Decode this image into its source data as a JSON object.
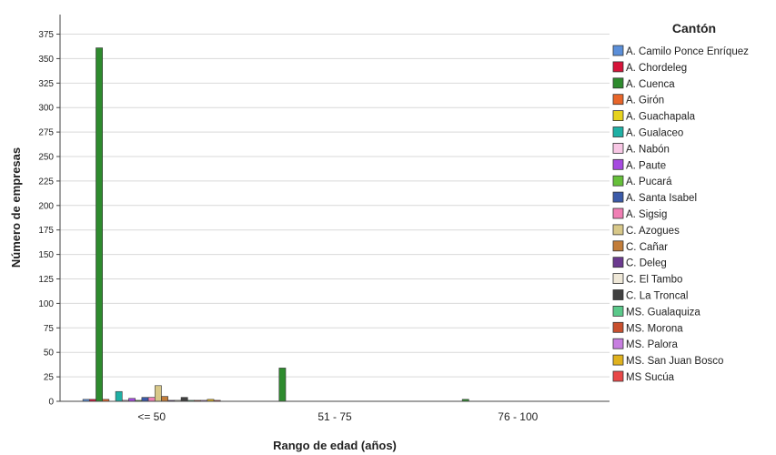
{
  "chart_data": {
    "type": "bar",
    "xlabel": "Rango de edad (años)",
    "ylabel": "Número de empresas",
    "ylim": [
      0,
      375
    ],
    "yticks": [
      0,
      25,
      50,
      75,
      100,
      125,
      150,
      175,
      200,
      225,
      250,
      275,
      300,
      325,
      350,
      375
    ],
    "grid": true,
    "legend_title": "Cantón",
    "legend_position": "right",
    "categories": [
      "<= 50",
      "51 - 75",
      "76 - 100"
    ],
    "series": [
      {
        "name": "A. Camilo Ponce Enríquez",
        "color": "#5B8FD9",
        "values": [
          2,
          0,
          0
        ]
      },
      {
        "name": "A. Chordeleg",
        "color": "#D6143A",
        "values": [
          2,
          0,
          0
        ]
      },
      {
        "name": "A. Cuenca",
        "color": "#2E8B2E",
        "values": [
          361,
          34,
          2
        ]
      },
      {
        "name": "A. Girón",
        "color": "#E8662A",
        "values": [
          2,
          0,
          0
        ]
      },
      {
        "name": "A. Guachapala",
        "color": "#E6D21E",
        "values": [
          0,
          0,
          0
        ]
      },
      {
        "name": "A. Gualaceo",
        "color": "#1FB0A5",
        "values": [
          10,
          0,
          0
        ]
      },
      {
        "name": "A. Nabón",
        "color": "#F8C7E5",
        "values": [
          1,
          0,
          0
        ]
      },
      {
        "name": "A. Paute",
        "color": "#A64BE0",
        "values": [
          3,
          0,
          0
        ]
      },
      {
        "name": "A. Pucará",
        "color": "#66C03A",
        "values": [
          1,
          0,
          0
        ]
      },
      {
        "name": "A. Santa Isabel",
        "color": "#3B5AA8",
        "values": [
          4,
          0,
          0
        ]
      },
      {
        "name": "A. Sigsig",
        "color": "#F07FB4",
        "values": [
          4,
          0,
          0
        ]
      },
      {
        "name": "C. Azogues",
        "color": "#D8C889",
        "values": [
          16,
          0,
          0
        ]
      },
      {
        "name": "C. Cañar",
        "color": "#C27D3A",
        "values": [
          5,
          0,
          0
        ]
      },
      {
        "name": "C. Deleg",
        "color": "#6B3A8F",
        "values": [
          1,
          0,
          0
        ]
      },
      {
        "name": "C. El Tambo",
        "color": "#EFE8D8",
        "values": [
          1,
          0,
          0
        ]
      },
      {
        "name": "C. La Troncal",
        "color": "#404040",
        "values": [
          4,
          0,
          0
        ]
      },
      {
        "name": "MS. Gualaquiza",
        "color": "#5BC98A",
        "values": [
          1,
          0,
          0
        ]
      },
      {
        "name": "MS. Morona",
        "color": "#C9502E",
        "values": [
          1,
          0,
          0
        ]
      },
      {
        "name": "MS. Palora",
        "color": "#C77FE0",
        "values": [
          1,
          0,
          0
        ]
      },
      {
        "name": "MS. San Juan Bosco",
        "color": "#E0B21E",
        "values": [
          2,
          0,
          0
        ]
      },
      {
        "name": "MS Sucúa",
        "color": "#E84848",
        "values": [
          1,
          0,
          0
        ]
      }
    ]
  }
}
